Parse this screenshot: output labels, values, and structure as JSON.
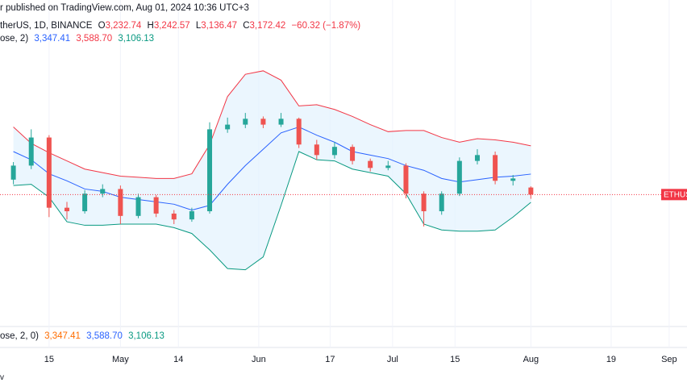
{
  "header": {
    "published": "r published on TradingView.com, Aug 01, 2024 10:36 UTC+3",
    "symbol": "therUS, 1D, BINANCE",
    "ohlc": [
      {
        "key": "O",
        "value": "3,232.74"
      },
      {
        "key": "H",
        "value": "3,242.57"
      },
      {
        "key": "L",
        "value": "3,136.47"
      },
      {
        "key": "C",
        "value": "3,172.42"
      }
    ],
    "change": "−60.32 (−1.87%)"
  },
  "indicator_legend": {
    "name": "ose, 2)",
    "values": [
      "3,347.41",
      "3,588.70",
      "3,106.13"
    ]
  },
  "lower_pane_legend": {
    "name": "ose, 2, 0)",
    "values": [
      "3,347.41",
      "3,588.70",
      "3,106.13"
    ]
  },
  "footer": {
    "text": "v"
  },
  "chart_data": {
    "type": "candlestick",
    "x": [
      "2024-04-07",
      "2024-04-11",
      "2024-04-15",
      "2024-04-19",
      "2024-04-23",
      "2024-04-27",
      "2024-05-01",
      "2024-05-05",
      "2024-05-09",
      "2024-05-13",
      "2024-05-17",
      "2024-05-21",
      "2024-05-25",
      "2024-05-29",
      "2024-06-02",
      "2024-06-06",
      "2024-06-10",
      "2024-06-14",
      "2024-06-18",
      "2024-06-22",
      "2024-06-26",
      "2024-06-30",
      "2024-07-04",
      "2024-07-08",
      "2024-07-12",
      "2024-07-16",
      "2024-07-20",
      "2024-07-24",
      "2024-07-28",
      "2024-08-01"
    ],
    "open": [
      3300,
      3420,
      3660,
      3060,
      3030,
      3180,
      3220,
      2990,
      3150,
      3010,
      2960,
      3030,
      3730,
      3770,
      3820,
      3770,
      3820,
      3600,
      3510,
      3580,
      3460,
      3400,
      3420,
      3180,
      3030,
      3180,
      3460,
      3510,
      3290,
      3232.74
    ],
    "high": [
      3450,
      3730,
      3680,
      3110,
      3210,
      3260,
      3250,
      3180,
      3170,
      3040,
      3060,
      3790,
      3830,
      3870,
      3840,
      3870,
      3830,
      3640,
      3620,
      3600,
      3480,
      3460,
      3440,
      3200,
      3200,
      3490,
      3560,
      3540,
      3340,
      3242.57
    ],
    "low": [
      3260,
      3390,
      2980,
      2960,
      3010,
      3150,
      2920,
      2970,
      2980,
      2920,
      2940,
      3010,
      3700,
      3740,
      3740,
      3750,
      3570,
      3470,
      3480,
      3430,
      3370,
      3380,
      3140,
      2900,
      3000,
      3160,
      3430,
      3260,
      3250,
      3136.47
    ],
    "close": [
      3420,
      3660,
      3060,
      3030,
      3180,
      3220,
      2990,
      3150,
      3010,
      2960,
      3030,
      3730,
      3770,
      3820,
      3770,
      3820,
      3600,
      3510,
      3580,
      3460,
      3400,
      3420,
      3180,
      3030,
      3180,
      3460,
      3510,
      3290,
      3310,
      3172.42
    ],
    "up_color": "#26a69a",
    "down_color": "#ef5350",
    "bands": [
      {
        "color": "#2962ff",
        "values": [
          3540,
          3470,
          3350,
          3290,
          3220,
          3200,
          3150,
          3130,
          3110,
          3090,
          3040,
          3080,
          3260,
          3420,
          3560,
          3700,
          3750,
          3680,
          3620,
          3540,
          3510,
          3480,
          3420,
          3380,
          3310,
          3280,
          3300,
          3320,
          3330,
          3347.41
        ]
      },
      {
        "color": "#f23645",
        "values": [
          3750,
          3610,
          3530,
          3460,
          3390,
          3360,
          3330,
          3320,
          3310,
          3310,
          3350,
          3600,
          4010,
          4200,
          4230,
          4150,
          3930,
          3940,
          3900,
          3840,
          3770,
          3710,
          3720,
          3720,
          3660,
          3620,
          3650,
          3640,
          3620,
          3588.7
        ]
      },
      {
        "color": "#089981",
        "values": [
          3250,
          3260,
          3150,
          2940,
          2910,
          2910,
          2920,
          2920,
          2920,
          2890,
          2840,
          2700,
          2540,
          2530,
          2640,
          3080,
          3540,
          3470,
          3460,
          3390,
          3360,
          3330,
          3180,
          2920,
          2870,
          2860,
          2860,
          2870,
          2980,
          3106.13
        ]
      }
    ],
    "band_fill": "#e3f2fd",
    "xlim": [
      "2024-04-04",
      "2024-09-05"
    ],
    "ylim": [
      2045,
      4835
    ],
    "xticks": [
      {
        "value": "2024-04-15",
        "label": "15"
      },
      {
        "value": "2024-05-01",
        "label": "May"
      },
      {
        "value": "2024-05-14",
        "label": "14"
      },
      {
        "value": "2024-06-01",
        "label": "Jun"
      },
      {
        "value": "2024-06-17",
        "label": "17"
      },
      {
        "value": "2024-07-01",
        "label": "Jul"
      },
      {
        "value": "2024-07-15",
        "label": "15"
      },
      {
        "value": "2024-08-01",
        "label": "Aug"
      },
      {
        "value": "2024-08-19",
        "label": "19"
      },
      {
        "value": "2024-09-01",
        "label": "Sep"
      }
    ],
    "last_price_label": "ETHUS",
    "last_price_color": "#f23645"
  }
}
